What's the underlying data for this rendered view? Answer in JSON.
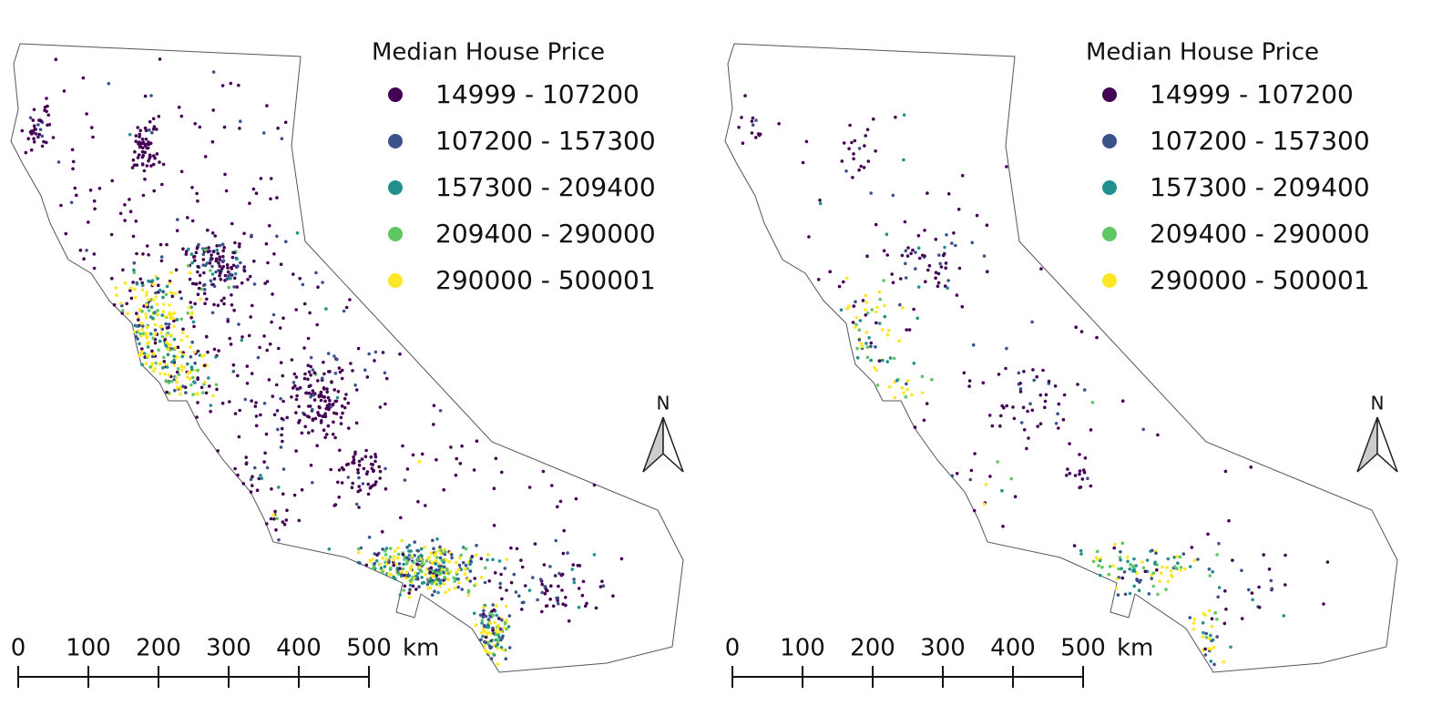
{
  "maps": [
    {
      "legend": {
        "title": "Median House Price",
        "items": [
          {
            "label": "14999 - 107200",
            "color": "#440154"
          },
          {
            "label": "107200 - 157300",
            "color": "#3b528b"
          },
          {
            "label": "157300 - 209400",
            "color": "#21908d"
          },
          {
            "label": "209400 - 290000",
            "color": "#5dc863"
          },
          {
            "label": "290000 - 500001",
            "color": "#fde725"
          }
        ]
      },
      "north": "N",
      "scale": {
        "ticks": [
          "0",
          "100",
          "200",
          "300",
          "400",
          "500"
        ],
        "unit": "km"
      }
    },
    {
      "legend": {
        "title": "Median House Price",
        "items": [
          {
            "label": "14999 - 107200",
            "color": "#440154"
          },
          {
            "label": "107200 - 157300",
            "color": "#3b528b"
          },
          {
            "label": "157300 - 209400",
            "color": "#21908d"
          },
          {
            "label": "209400 - 290000",
            "color": "#5dc863"
          },
          {
            "label": "290000 - 500001",
            "color": "#fde725"
          }
        ]
      },
      "north": "N",
      "scale": {
        "ticks": [
          "0",
          "100",
          "200",
          "300",
          "400",
          "500"
        ],
        "unit": "km"
      }
    }
  ]
}
